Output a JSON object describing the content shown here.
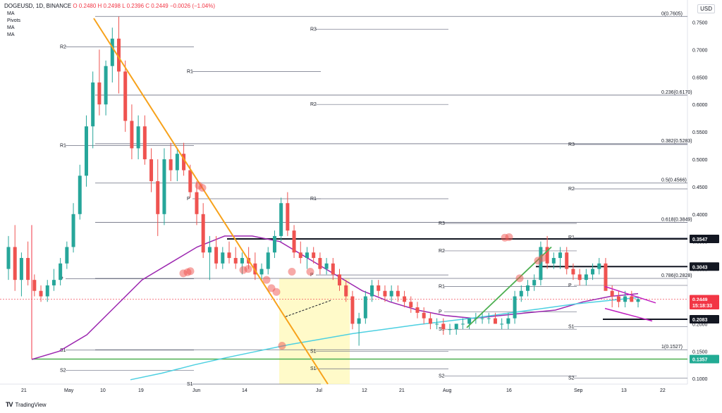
{
  "header": {
    "symbol": "DOGEUSD, 1D, BINANCE",
    "ohlc": "O 0.2480  H 0.2498  L 0.2396  C 0.2449  −0.0026 (−1.04%)",
    "indicators": [
      "MA",
      "Pivots",
      "MA",
      "MA"
    ]
  },
  "currency_label": "USD",
  "footer_brand": "TradingView",
  "chart_data": {
    "type": "candlestick",
    "y_ticks": [
      "0.7500",
      "0.7000",
      "0.6500",
      "0.6000",
      "0.5500",
      "0.5000",
      "0.4500",
      "0.4000",
      "0.3500",
      "0.3000",
      "0.2500",
      "0.2000",
      "0.1500",
      "0.1000"
    ],
    "ylim": [
      0.09,
      0.775
    ],
    "x_ticks": [
      "21",
      "May",
      "10",
      "19",
      "Jun",
      "14",
      "Jul",
      "12",
      "21",
      "Aug",
      "16",
      "Sep",
      "13",
      "22"
    ],
    "fib_levels": [
      {
        "label": "0(0.7605)",
        "value": 0.7605
      },
      {
        "label": "0.236(0.6170)",
        "value": 0.617
      },
      {
        "label": "0.382(0.5283)",
        "value": 0.5283
      },
      {
        "label": "0.5(0.4566)",
        "value": 0.4566
      },
      {
        "label": "0.618(0.3849)",
        "value": 0.3849
      },
      {
        "label": "0.786(0.2828)",
        "value": 0.2828
      },
      {
        "label": "1(0.1527)",
        "value": 0.1527
      }
    ],
    "pivot_labels": [
      "R3",
      "R2",
      "R1",
      "P",
      "S1",
      "S2"
    ],
    "price_boxes": [
      {
        "label": "0.3547",
        "value": 0.3547,
        "color": "#131722",
        "text": "#ffffff"
      },
      {
        "label": "0.3043",
        "value": 0.3043,
        "color": "#131722",
        "text": "#ffffff"
      },
      {
        "label": "0.2449",
        "value": 0.2449,
        "color": "#f23645",
        "text": "#ffffff"
      },
      {
        "label": "15:18:33",
        "value": 0.234,
        "color": "#f23645",
        "text": "#ffffff"
      },
      {
        "label": "0.2083",
        "value": 0.2083,
        "color": "#131722",
        "text": "#ffffff"
      },
      {
        "label": "0.1357",
        "value": 0.1357,
        "color": "#22ab94",
        "text": "#ffffff"
      }
    ],
    "candles_ohlc": [
      [
        0.3,
        0.36,
        0.28,
        0.34
      ],
      [
        0.34,
        0.38,
        0.26,
        0.28
      ],
      [
        0.28,
        0.33,
        0.25,
        0.32
      ],
      [
        0.32,
        0.35,
        0.27,
        0.28
      ],
      [
        0.28,
        0.29,
        0.25,
        0.26
      ],
      [
        0.26,
        0.27,
        0.24,
        0.25
      ],
      [
        0.25,
        0.28,
        0.24,
        0.27
      ],
      [
        0.27,
        0.3,
        0.26,
        0.28
      ],
      [
        0.28,
        0.32,
        0.27,
        0.31
      ],
      [
        0.31,
        0.35,
        0.3,
        0.34
      ],
      [
        0.34,
        0.42,
        0.33,
        0.4
      ],
      [
        0.4,
        0.49,
        0.39,
        0.47
      ],
      [
        0.47,
        0.58,
        0.45,
        0.56
      ],
      [
        0.56,
        0.66,
        0.52,
        0.64
      ],
      [
        0.64,
        0.7,
        0.58,
        0.6
      ],
      [
        0.6,
        0.68,
        0.58,
        0.67
      ],
      [
        0.67,
        0.74,
        0.64,
        0.72
      ],
      [
        0.72,
        0.76,
        0.62,
        0.66
      ],
      [
        0.66,
        0.68,
        0.55,
        0.57
      ],
      [
        0.57,
        0.6,
        0.5,
        0.52
      ],
      [
        0.52,
        0.58,
        0.5,
        0.56
      ],
      [
        0.56,
        0.58,
        0.49,
        0.5
      ],
      [
        0.5,
        0.52,
        0.44,
        0.46
      ],
      [
        0.46,
        0.5,
        0.36,
        0.4
      ],
      [
        0.4,
        0.52,
        0.38,
        0.5
      ],
      [
        0.5,
        0.53,
        0.46,
        0.48
      ],
      [
        0.48,
        0.52,
        0.46,
        0.51
      ],
      [
        0.51,
        0.53,
        0.47,
        0.48
      ],
      [
        0.48,
        0.49,
        0.43,
        0.44
      ],
      [
        0.44,
        0.46,
        0.38,
        0.4
      ],
      [
        0.4,
        0.42,
        0.32,
        0.33
      ],
      [
        0.33,
        0.36,
        0.28,
        0.34
      ],
      [
        0.34,
        0.36,
        0.3,
        0.31
      ],
      [
        0.31,
        0.34,
        0.3,
        0.33
      ],
      [
        0.33,
        0.35,
        0.31,
        0.32
      ],
      [
        0.32,
        0.34,
        0.3,
        0.31
      ],
      [
        0.31,
        0.33,
        0.29,
        0.32
      ],
      [
        0.32,
        0.34,
        0.3,
        0.31
      ],
      [
        0.31,
        0.33,
        0.28,
        0.29
      ],
      [
        0.29,
        0.31,
        0.28,
        0.3
      ],
      [
        0.3,
        0.34,
        0.29,
        0.33
      ],
      [
        0.33,
        0.37,
        0.32,
        0.36
      ],
      [
        0.36,
        0.43,
        0.35,
        0.42
      ],
      [
        0.42,
        0.44,
        0.36,
        0.37
      ],
      [
        0.37,
        0.38,
        0.32,
        0.33
      ],
      [
        0.33,
        0.35,
        0.31,
        0.32
      ],
      [
        0.32,
        0.34,
        0.3,
        0.33
      ],
      [
        0.33,
        0.34,
        0.31,
        0.32
      ],
      [
        0.32,
        0.33,
        0.29,
        0.3
      ],
      [
        0.3,
        0.32,
        0.29,
        0.31
      ],
      [
        0.31,
        0.32,
        0.28,
        0.29
      ],
      [
        0.29,
        0.3,
        0.26,
        0.27
      ],
      [
        0.27,
        0.28,
        0.24,
        0.25
      ],
      [
        0.25,
        0.26,
        0.19,
        0.2
      ],
      [
        0.2,
        0.22,
        0.16,
        0.21
      ],
      [
        0.21,
        0.26,
        0.2,
        0.25
      ],
      [
        0.25,
        0.28,
        0.24,
        0.27
      ],
      [
        0.27,
        0.28,
        0.25,
        0.26
      ],
      [
        0.26,
        0.27,
        0.24,
        0.25
      ],
      [
        0.25,
        0.27,
        0.24,
        0.26
      ],
      [
        0.26,
        0.27,
        0.24,
        0.25
      ],
      [
        0.25,
        0.26,
        0.23,
        0.24
      ],
      [
        0.24,
        0.25,
        0.22,
        0.23
      ],
      [
        0.23,
        0.24,
        0.21,
        0.22
      ],
      [
        0.22,
        0.23,
        0.2,
        0.21
      ],
      [
        0.21,
        0.22,
        0.19,
        0.2
      ],
      [
        0.2,
        0.21,
        0.19,
        0.2
      ],
      [
        0.2,
        0.21,
        0.18,
        0.19
      ],
      [
        0.19,
        0.2,
        0.18,
        0.19
      ],
      [
        0.19,
        0.2,
        0.18,
        0.2
      ],
      [
        0.2,
        0.21,
        0.19,
        0.2
      ],
      [
        0.2,
        0.21,
        0.19,
        0.21
      ],
      [
        0.21,
        0.22,
        0.2,
        0.21
      ],
      [
        0.21,
        0.22,
        0.2,
        0.21
      ],
      [
        0.21,
        0.22,
        0.2,
        0.21
      ],
      [
        0.21,
        0.22,
        0.2,
        0.2
      ],
      [
        0.2,
        0.21,
        0.19,
        0.2
      ],
      [
        0.2,
        0.22,
        0.19,
        0.21
      ],
      [
        0.21,
        0.26,
        0.2,
        0.25
      ],
      [
        0.25,
        0.27,
        0.24,
        0.26
      ],
      [
        0.26,
        0.28,
        0.25,
        0.27
      ],
      [
        0.27,
        0.29,
        0.26,
        0.28
      ],
      [
        0.28,
        0.35,
        0.27,
        0.34
      ],
      [
        0.34,
        0.36,
        0.3,
        0.31
      ],
      [
        0.31,
        0.33,
        0.3,
        0.32
      ],
      [
        0.32,
        0.34,
        0.3,
        0.33
      ],
      [
        0.33,
        0.34,
        0.29,
        0.3
      ],
      [
        0.3,
        0.31,
        0.28,
        0.29
      ],
      [
        0.29,
        0.3,
        0.27,
        0.28
      ],
      [
        0.28,
        0.3,
        0.27,
        0.29
      ],
      [
        0.29,
        0.31,
        0.28,
        0.3
      ],
      [
        0.3,
        0.32,
        0.29,
        0.31
      ],
      [
        0.31,
        0.32,
        0.27,
        0.26
      ],
      [
        0.26,
        0.27,
        0.23,
        0.25
      ],
      [
        0.25,
        0.26,
        0.23,
        0.24
      ],
      [
        0.24,
        0.26,
        0.23,
        0.25
      ],
      [
        0.25,
        0.26,
        0.24,
        0.24
      ],
      [
        0.24,
        0.25,
        0.23,
        0.245
      ]
    ],
    "series": [
      {
        "name": "MA",
        "color": "#9c27b0",
        "values": [
          0.135,
          0.15,
          0.18,
          0.23,
          0.28,
          0.31,
          0.34,
          0.36,
          0.36,
          0.35,
          0.32,
          0.29,
          0.26,
          0.24,
          0.225,
          0.215,
          0.21,
          0.215,
          0.22,
          0.225,
          0.24,
          0.25,
          0.255
        ]
      },
      {
        "name": "MA",
        "color": "#4dd0e1",
        "values": [
          0.098,
          0.11,
          0.125,
          0.138,
          0.15,
          0.162,
          0.172,
          0.182,
          0.19,
          0.198,
          0.205,
          0.212,
          0.22,
          0.228,
          0.236,
          0.242,
          0.248
        ]
      }
    ]
  }
}
